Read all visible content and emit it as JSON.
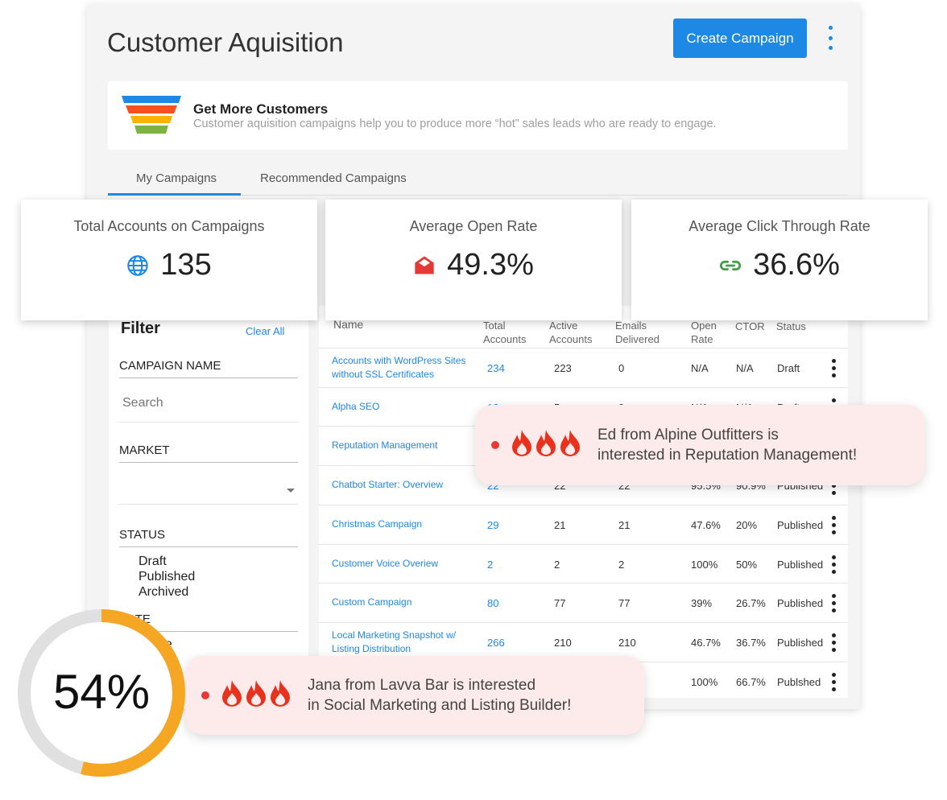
{
  "header": {
    "title": "Customer Aquisition",
    "create_label": "Create Campaign"
  },
  "banner": {
    "title": "Get More Customers",
    "subtitle": "Customer aquisition campaigns help you to produce more “hot” sales leads who are ready to engage."
  },
  "tabs": [
    {
      "label": "My Campaigns",
      "active": true
    },
    {
      "label": "Recommended Campaigns",
      "active": false
    }
  ],
  "stats": [
    {
      "label": "Total Accounts on Campaigns",
      "value": "135",
      "icon": "globe-icon",
      "color": "#1e88e5"
    },
    {
      "label": "Average Open Rate",
      "value": "49.3%",
      "icon": "open-envelope-icon",
      "color": "#e53935"
    },
    {
      "label": "Average Click Through Rate",
      "value": "36.6%",
      "icon": "link-icon",
      "color": "#43a047"
    }
  ],
  "filter": {
    "title": "Filter",
    "clear_label": "Clear All",
    "campaign_name_label": "CAMPAIGN NAME",
    "search_placeholder": "Search",
    "market_label": "MARKET",
    "status_label": "STATUS",
    "status_options": [
      "Draft",
      "Published",
      "Archived"
    ],
    "date_label": "DATE",
    "date_value": "e"
  },
  "table": {
    "headers": [
      "Name",
      "Total Accounts",
      "Active Accounts",
      "Emails Delivered",
      "Open Rate",
      "CTOR",
      "Status"
    ],
    "rows": [
      [
        "Accounts with WordPress Sites without SSL Certificates",
        "234",
        "223",
        "0",
        "N/A",
        "N/A",
        "Draft"
      ],
      [
        "Alpha SEO",
        "12",
        "5",
        "0",
        "N/A",
        "N/A",
        "Draft"
      ],
      [
        "Reputation Management",
        "",
        "",
        "",
        "",
        "",
        ""
      ],
      [
        "Chatbot Starter: Overview",
        "22",
        "22",
        "22",
        "95.5%",
        "90.9%",
        "Published"
      ],
      [
        "Christmas Campaign",
        "29",
        "21",
        "21",
        "47.6%",
        "20%",
        "Published"
      ],
      [
        "Customer Voice Overiew",
        "2",
        "2",
        "2",
        "100%",
        "50%",
        "Published"
      ],
      [
        "Custom Campaign",
        "80",
        "77",
        "77",
        "39%",
        "26.7%",
        "Published"
      ],
      [
        "Local Marketing Snapshot w/ Listing Distribution",
        "266",
        "210",
        "210",
        "46.7%",
        "36.7%",
        "Published"
      ],
      [
        "",
        "",
        "",
        "",
        "100%",
        "66.7%",
        "Publshed"
      ]
    ]
  },
  "toasts": [
    {
      "line1": "Ed from Alpine Outfitters is",
      "line2": "interested in Reputation Management!"
    },
    {
      "line1": "Jana from Lavva Bar is interested",
      "line2": "in Social Marketing and  Listing Builder!"
    }
  ],
  "progress": {
    "label": "54%",
    "value": 54,
    "color": "#f5a623"
  }
}
